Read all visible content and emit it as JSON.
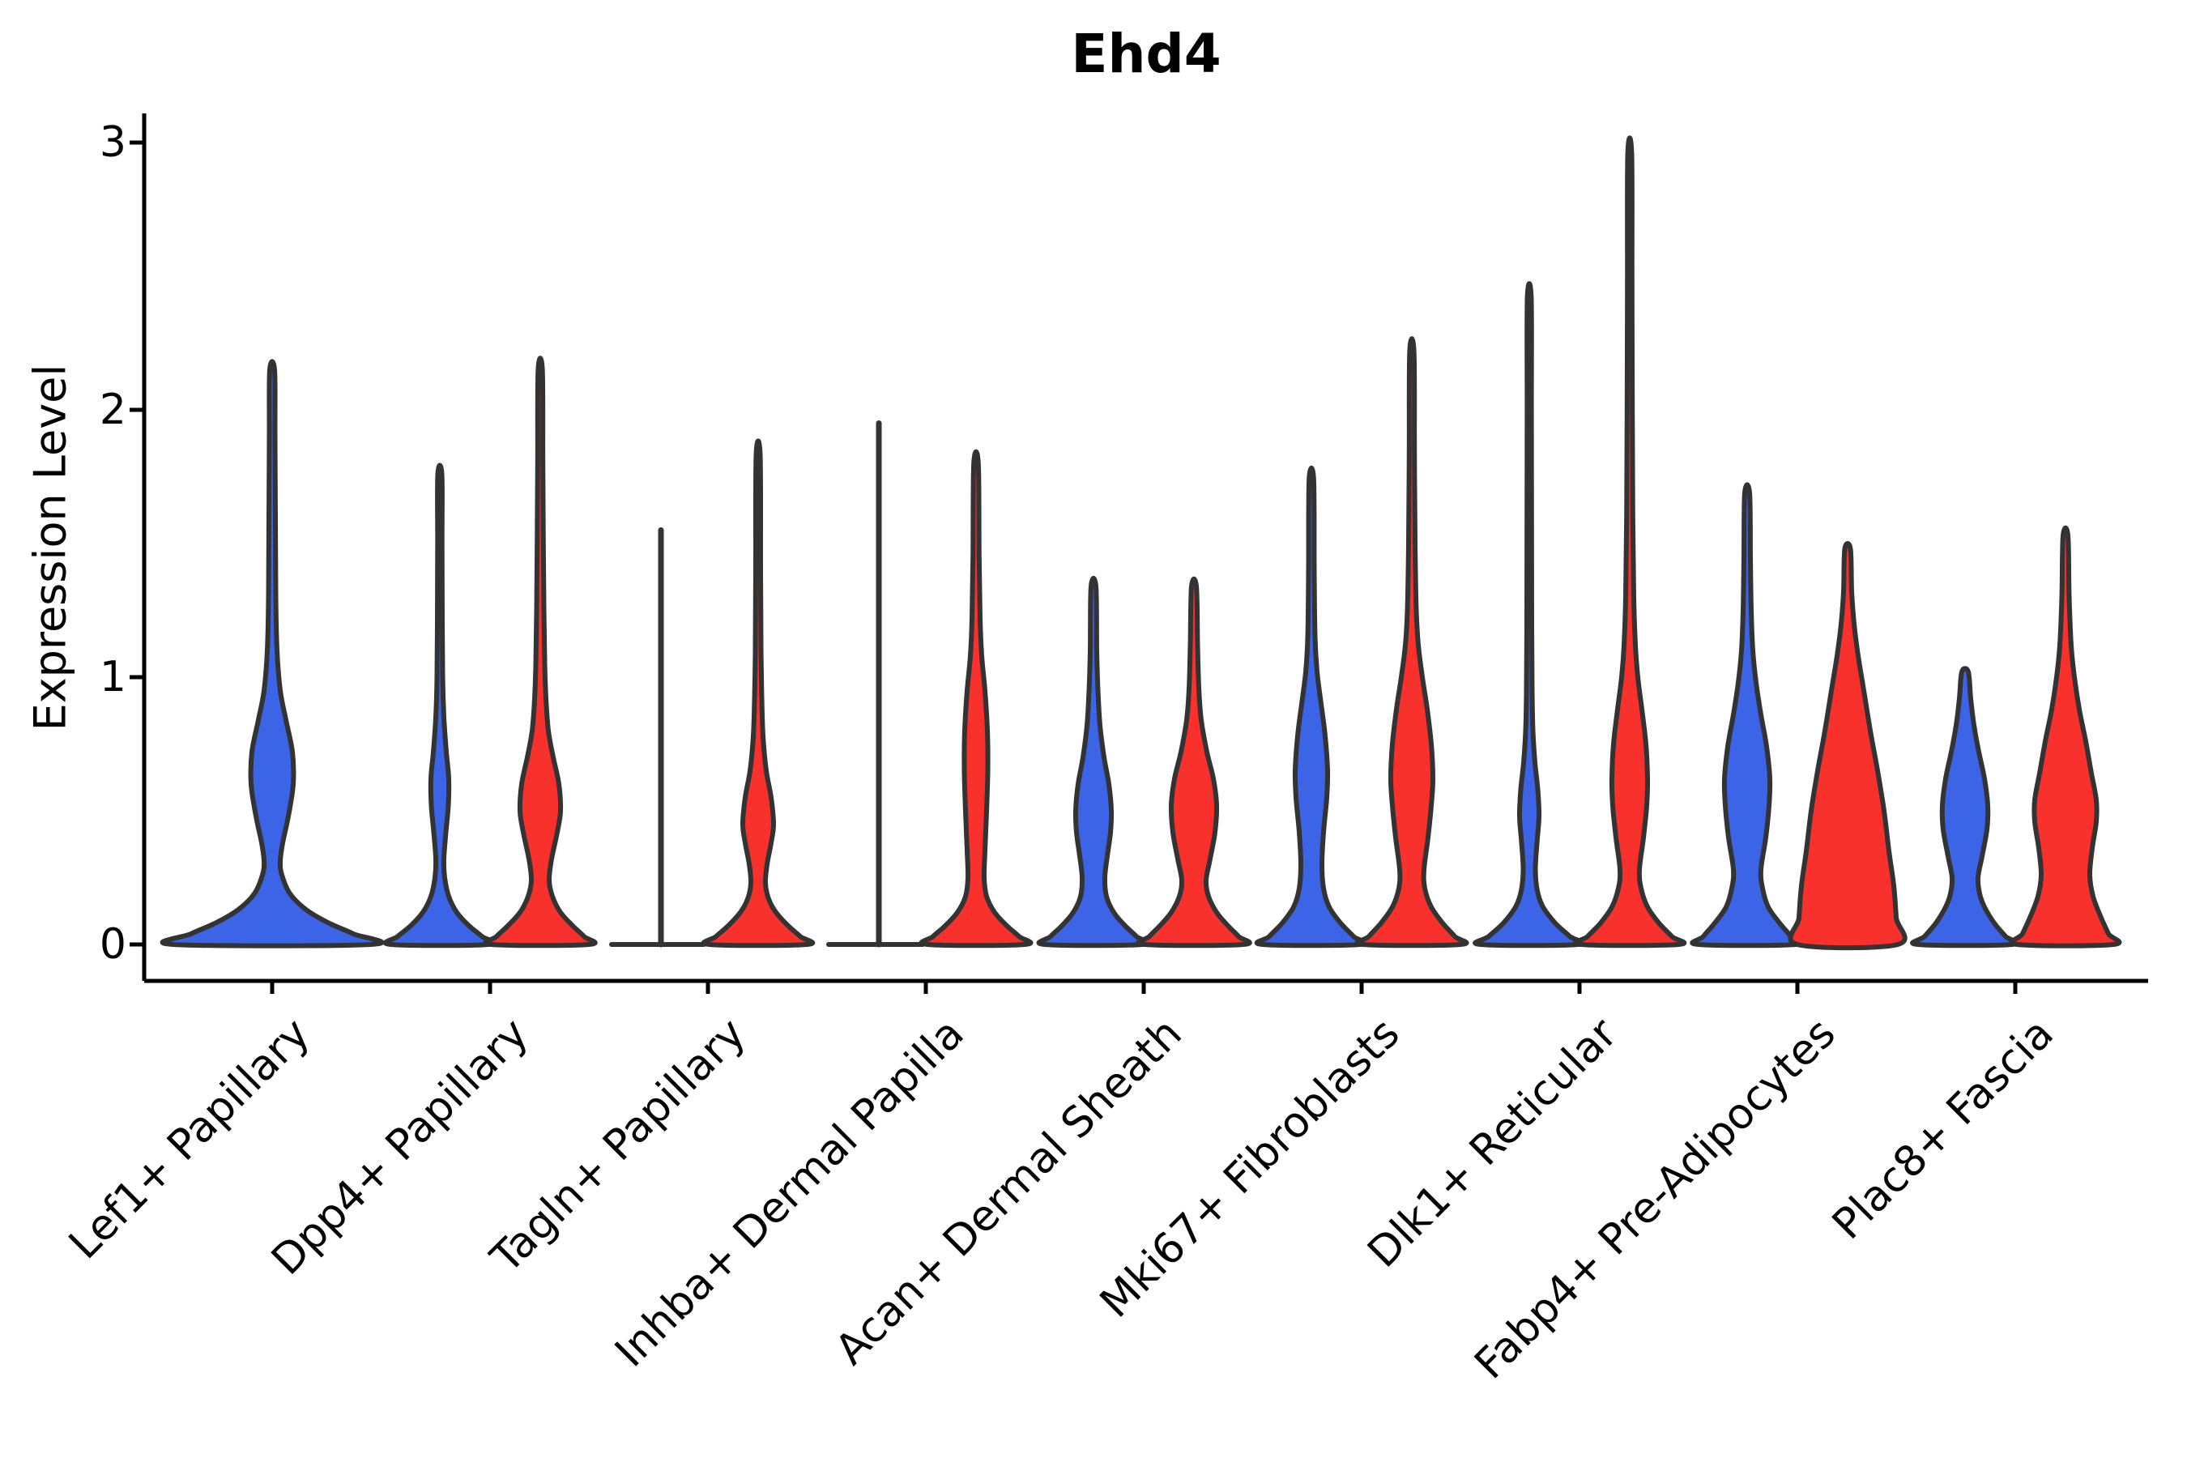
{
  "chart_data": {
    "type": "violin",
    "title": "Ehd4",
    "ylabel": "Expression Level",
    "xlabel": "",
    "ylim": [
      0,
      3.1
    ],
    "yticks": [
      0,
      1,
      2,
      3
    ],
    "grid": false,
    "legend": "none",
    "groups": [
      {
        "id": "blue",
        "color": "#3B64E6"
      },
      {
        "id": "red",
        "color": "#F8312D"
      }
    ],
    "stroke_color": "#333333",
    "categories": [
      "Lef1+ Papillary",
      "Dpp4+ Papillary",
      "Tagln+ Papillary",
      "Inhba+ Dermal Papilla",
      "Acan+ Dermal Sheath",
      "Mki67+ Fibroblasts",
      "Dlk1+ Reticular",
      "Fabp4+ Pre-Adipocytes",
      "Plac8+ Fascia"
    ],
    "violins": [
      {
        "category": "Lef1+ Papillary",
        "group": "blue",
        "layout": "full",
        "peak": 2.15,
        "profile": [
          [
            0,
            122
          ],
          [
            0.04,
            100
          ],
          [
            0.08,
            70
          ],
          [
            0.13,
            42
          ],
          [
            0.19,
            22
          ],
          [
            0.26,
            12
          ],
          [
            0.31,
            10
          ],
          [
            0.38,
            13
          ],
          [
            0.48,
            20
          ],
          [
            0.6,
            26
          ],
          [
            0.72,
            25
          ],
          [
            0.84,
            17
          ],
          [
            0.95,
            10
          ],
          [
            1.1,
            6
          ],
          [
            1.3,
            4.5
          ],
          [
            1.6,
            4
          ],
          [
            1.9,
            3.5
          ],
          [
            2.15,
            3
          ]
        ]
      },
      {
        "category": "Dpp4+ Papillary",
        "group": "blue",
        "peak": 1.76,
        "profile": [
          [
            0,
            60
          ],
          [
            0.03,
            52
          ],
          [
            0.07,
            36
          ],
          [
            0.12,
            21
          ],
          [
            0.18,
            11
          ],
          [
            0.25,
            6
          ],
          [
            0.32,
            5
          ],
          [
            0.42,
            7.5
          ],
          [
            0.52,
            10.5
          ],
          [
            0.62,
            11
          ],
          [
            0.72,
            8
          ],
          [
            0.85,
            5
          ],
          [
            1,
            3.5
          ],
          [
            1.2,
            3
          ],
          [
            1.5,
            2.7
          ],
          [
            1.76,
            2.5
          ]
        ]
      },
      {
        "category": "Dpp4+ Papillary",
        "group": "red",
        "peak": 2.15,
        "profile": [
          [
            0,
            60
          ],
          [
            0.03,
            54
          ],
          [
            0.07,
            40
          ],
          [
            0.12,
            25
          ],
          [
            0.18,
            15
          ],
          [
            0.24,
            11
          ],
          [
            0.32,
            14
          ],
          [
            0.42,
            21
          ],
          [
            0.5,
            25
          ],
          [
            0.6,
            23
          ],
          [
            0.7,
            16
          ],
          [
            0.8,
            10
          ],
          [
            0.92,
            7
          ],
          [
            1.05,
            5.5
          ],
          [
            1.25,
            4.5
          ],
          [
            1.5,
            3.8
          ],
          [
            1.8,
            3.2
          ],
          [
            2.15,
            2.6
          ]
        ]
      },
      {
        "category": "Tagln+ Papillary",
        "group": "blue",
        "degenerate": true,
        "flat_halfwidth": 57,
        "peak": 1.55
      },
      {
        "category": "Tagln+ Papillary",
        "group": "red",
        "peak": 1.83,
        "profile": [
          [
            0,
            60
          ],
          [
            0.03,
            52
          ],
          [
            0.07,
            37
          ],
          [
            0.12,
            22
          ],
          [
            0.17,
            13
          ],
          [
            0.23,
            9
          ],
          [
            0.3,
            11
          ],
          [
            0.38,
            16
          ],
          [
            0.45,
            19
          ],
          [
            0.55,
            16
          ],
          [
            0.65,
            10
          ],
          [
            0.78,
            6
          ],
          [
            0.92,
            4.5
          ],
          [
            1.1,
            3.5
          ],
          [
            1.4,
            3
          ],
          [
            1.83,
            2.5
          ]
        ]
      },
      {
        "category": "Inhba+ Dermal Papilla",
        "group": "blue",
        "degenerate": true,
        "flat_halfwidth": 58,
        "peak": 1.95
      },
      {
        "category": "Inhba+ Dermal Papilla",
        "group": "red",
        "peak": 1.8,
        "profile": [
          [
            0,
            60
          ],
          [
            0.03,
            53
          ],
          [
            0.07,
            38
          ],
          [
            0.12,
            23
          ],
          [
            0.18,
            13
          ],
          [
            0.25,
            10
          ],
          [
            0.35,
            11
          ],
          [
            0.5,
            13
          ],
          [
            0.65,
            14.5
          ],
          [
            0.8,
            14
          ],
          [
            0.95,
            11
          ],
          [
            1.08,
            7
          ],
          [
            1.22,
            5
          ],
          [
            1.45,
            3.8
          ],
          [
            1.8,
            2.8
          ]
        ]
      },
      {
        "category": "Acan+ Dermal Sheath",
        "group": "blue",
        "peak": 1.34,
        "profile": [
          [
            0,
            60
          ],
          [
            0.03,
            53
          ],
          [
            0.07,
            39
          ],
          [
            0.12,
            25
          ],
          [
            0.18,
            16
          ],
          [
            0.25,
            14
          ],
          [
            0.33,
            17
          ],
          [
            0.42,
            21
          ],
          [
            0.5,
            22
          ],
          [
            0.6,
            19
          ],
          [
            0.7,
            13
          ],
          [
            0.82,
            8
          ],
          [
            0.95,
            5.5
          ],
          [
            1.1,
            4
          ],
          [
            1.34,
            3
          ]
        ]
      },
      {
        "category": "Acan+ Dermal Sheath",
        "group": "red",
        "peak": 1.34,
        "profile": [
          [
            0,
            61
          ],
          [
            0.03,
            55
          ],
          [
            0.07,
            42
          ],
          [
            0.12,
            28
          ],
          [
            0.18,
            18
          ],
          [
            0.24,
            15
          ],
          [
            0.32,
            20
          ],
          [
            0.42,
            26
          ],
          [
            0.52,
            28
          ],
          [
            0.62,
            24
          ],
          [
            0.72,
            16
          ],
          [
            0.84,
            9
          ],
          [
            0.96,
            6
          ],
          [
            1.12,
            4.5
          ],
          [
            1.34,
            3
          ]
        ]
      },
      {
        "category": "Mki67+ Fibroblasts",
        "group": "blue",
        "peak": 1.74,
        "profile": [
          [
            0,
            60
          ],
          [
            0.03,
            52
          ],
          [
            0.08,
            36
          ],
          [
            0.14,
            22
          ],
          [
            0.21,
            15
          ],
          [
            0.3,
            13
          ],
          [
            0.42,
            15
          ],
          [
            0.55,
            19
          ],
          [
            0.65,
            20
          ],
          [
            0.78,
            17
          ],
          [
            0.9,
            12
          ],
          [
            1.02,
            7
          ],
          [
            1.15,
            4.5
          ],
          [
            1.4,
            3.5
          ],
          [
            1.74,
            2.8
          ]
        ]
      },
      {
        "category": "Mki67+ Fibroblasts",
        "group": "red",
        "peak": 2.22,
        "profile": [
          [
            0,
            60
          ],
          [
            0.03,
            53
          ],
          [
            0.08,
            38
          ],
          [
            0.14,
            24
          ],
          [
            0.21,
            16
          ],
          [
            0.28,
            15
          ],
          [
            0.4,
            20
          ],
          [
            0.52,
            24
          ],
          [
            0.62,
            26
          ],
          [
            0.75,
            24
          ],
          [
            0.88,
            19
          ],
          [
            1,
            13
          ],
          [
            1.12,
            8
          ],
          [
            1.25,
            5.5
          ],
          [
            1.5,
            4
          ],
          [
            1.85,
            3.2
          ],
          [
            2.22,
            2.6
          ]
        ]
      },
      {
        "category": "Dlk1+ Reticular",
        "group": "blue",
        "peak": 2.42,
        "profile": [
          [
            0,
            60
          ],
          [
            0.03,
            50
          ],
          [
            0.08,
            32
          ],
          [
            0.14,
            17
          ],
          [
            0.2,
            10
          ],
          [
            0.28,
            7.5
          ],
          [
            0.38,
            9.5
          ],
          [
            0.48,
            12
          ],
          [
            0.58,
            10.5
          ],
          [
            0.68,
            7
          ],
          [
            0.8,
            4.5
          ],
          [
            0.95,
            3.5
          ],
          [
            1.2,
            3
          ],
          [
            1.6,
            2.8
          ],
          [
            2,
            2.6
          ],
          [
            2.42,
            2.4
          ]
        ]
      },
      {
        "category": "Dlk1+ Reticular",
        "group": "red",
        "peak": 2.96,
        "profile": [
          [
            0,
            60
          ],
          [
            0.03,
            52
          ],
          [
            0.08,
            36
          ],
          [
            0.14,
            22
          ],
          [
            0.21,
            14
          ],
          [
            0.28,
            12
          ],
          [
            0.4,
            17
          ],
          [
            0.52,
            21
          ],
          [
            0.62,
            22
          ],
          [
            0.75,
            20
          ],
          [
            0.88,
            15
          ],
          [
            1,
            10
          ],
          [
            1.12,
            7
          ],
          [
            1.3,
            5
          ],
          [
            1.6,
            3.8
          ],
          [
            2,
            3.2
          ],
          [
            2.5,
            2.8
          ],
          [
            2.96,
            2.4
          ]
        ]
      },
      {
        "category": "Fabp4+ Pre-Adipocytes",
        "group": "blue",
        "peak": 1.69,
        "profile": [
          [
            0,
            60
          ],
          [
            0.03,
            54
          ],
          [
            0.08,
            40
          ],
          [
            0.14,
            26
          ],
          [
            0.21,
            19
          ],
          [
            0.28,
            17
          ],
          [
            0.4,
            23
          ],
          [
            0.52,
            27
          ],
          [
            0.62,
            28
          ],
          [
            0.74,
            24
          ],
          [
            0.86,
            17
          ],
          [
            0.98,
            11
          ],
          [
            1.1,
            7
          ],
          [
            1.25,
            5
          ],
          [
            1.45,
            4
          ],
          [
            1.69,
            3
          ]
        ]
      },
      {
        "category": "Fabp4+ Pre-Adipocytes",
        "group": "red",
        "peak": 1.48,
        "profile": [
          [
            0,
            62
          ],
          [
            0.1,
            60
          ],
          [
            0.22,
            57
          ],
          [
            0.35,
            51
          ],
          [
            0.5,
            45
          ],
          [
            0.65,
            37
          ],
          [
            0.8,
            28
          ],
          [
            0.95,
            20
          ],
          [
            1.08,
            13
          ],
          [
            1.2,
            8
          ],
          [
            1.32,
            5
          ],
          [
            1.48,
            3.5
          ]
        ]
      },
      {
        "category": "Plac8+ Fascia",
        "group": "blue",
        "peak": 1.02,
        "profile": [
          [
            0,
            58
          ],
          [
            0.03,
            50
          ],
          [
            0.08,
            36
          ],
          [
            0.14,
            24
          ],
          [
            0.19,
            18
          ],
          [
            0.25,
            16
          ],
          [
            0.33,
            21
          ],
          [
            0.43,
            27
          ],
          [
            0.52,
            28
          ],
          [
            0.62,
            24
          ],
          [
            0.72,
            17
          ],
          [
            0.82,
            11
          ],
          [
            0.92,
            7
          ],
          [
            1.02,
            4
          ]
        ]
      },
      {
        "category": "Plac8+ Fascia",
        "group": "red",
        "peak": 1.53,
        "profile": [
          [
            0,
            59
          ],
          [
            0.04,
            53
          ],
          [
            0.1,
            44
          ],
          [
            0.18,
            34
          ],
          [
            0.26,
            30
          ],
          [
            0.36,
            33
          ],
          [
            0.46,
            38
          ],
          [
            0.54,
            38
          ],
          [
            0.64,
            32
          ],
          [
            0.76,
            25
          ],
          [
            0.88,
            17
          ],
          [
            1,
            11
          ],
          [
            1.12,
            7
          ],
          [
            1.3,
            4.5
          ],
          [
            1.53,
            3
          ]
        ]
      }
    ]
  }
}
